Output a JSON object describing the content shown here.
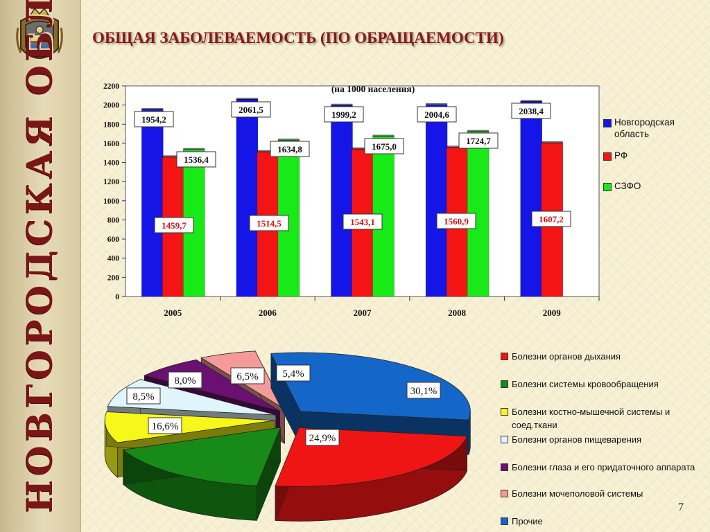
{
  "header": {
    "title": "ОБЩАЯ ЗАБОЛЕВАЕМОСТЬ (ПО ОБРАЩАЕМОСТИ)",
    "page_number": "7"
  },
  "sidebar": {
    "vertical_title": "НОВГОРОДСКАЯ ОБЛАСТЬ",
    "crest_icon": "coat-of-arms-icon"
  },
  "colors": {
    "novgorod": "#1515e8",
    "rf": "#f51414",
    "szfo": "#18ea18",
    "title": "#8a1717"
  },
  "chart_data": [
    {
      "type": "bar",
      "subtitle": "(на 1000 населения)",
      "categories": [
        "2005",
        "2006",
        "2007",
        "2008",
        "2009"
      ],
      "series": [
        {
          "name": "Новгородская область",
          "values": [
            1954.2,
            2061.5,
            1999.2,
            2004.6,
            2038.4
          ],
          "labels": [
            "1954,2",
            "2061,5",
            "1999,2",
            "2004,6",
            "2038,4"
          ]
        },
        {
          "name": "РФ",
          "values": [
            1459.7,
            1514.5,
            1543.1,
            1560.9,
            1607.2
          ],
          "labels": [
            "1459,7",
            "1514,5",
            "1543,1",
            "1560,9",
            "1607,2"
          ]
        },
        {
          "name": "СЗФО",
          "values": [
            1536.4,
            1634.8,
            1675.0,
            1724.7,
            null
          ],
          "labels": [
            "1536,4",
            "1634,8",
            "1675,0",
            "1724,7",
            null
          ]
        }
      ],
      "yticks": [
        "0",
        "200",
        "400",
        "600",
        "800",
        "1000",
        "1200",
        "1400",
        "1600",
        "1800",
        "2000",
        "2200"
      ],
      "ylim": [
        0,
        2200
      ],
      "legend_position": "right"
    },
    {
      "type": "pie",
      "style": "3d-exploded",
      "slices": [
        {
          "name": "Болезни органов дыхания",
          "value": 24.9,
          "label": "24,9%",
          "color": "#f01515"
        },
        {
          "name": "Болезни системы кровообращения",
          "value": 16.6,
          "label": "16,6%",
          "color": "#178a17"
        },
        {
          "name": "Болезни костно-мышечной системы и соед.ткани",
          "value": 8.5,
          "label": "8,5%",
          "color": "#f7f71a"
        },
        {
          "name": "Болезни органов пищеварения",
          "value": 8.0,
          "label": "8,0%",
          "color": "#dff5fb"
        },
        {
          "name": "Болезни глаза и его придаточного аппарата",
          "value": 6.5,
          "label": "6,5%",
          "color": "#6a1070"
        },
        {
          "name": "Болезни мочеполовой системы",
          "value": 5.4,
          "label": "5,4%",
          "color": "#f59a9a"
        },
        {
          "name": "Прочие",
          "value": 30.1,
          "label": "30,1%",
          "color": "#1466c8"
        }
      ],
      "legend_position": "right"
    }
  ]
}
